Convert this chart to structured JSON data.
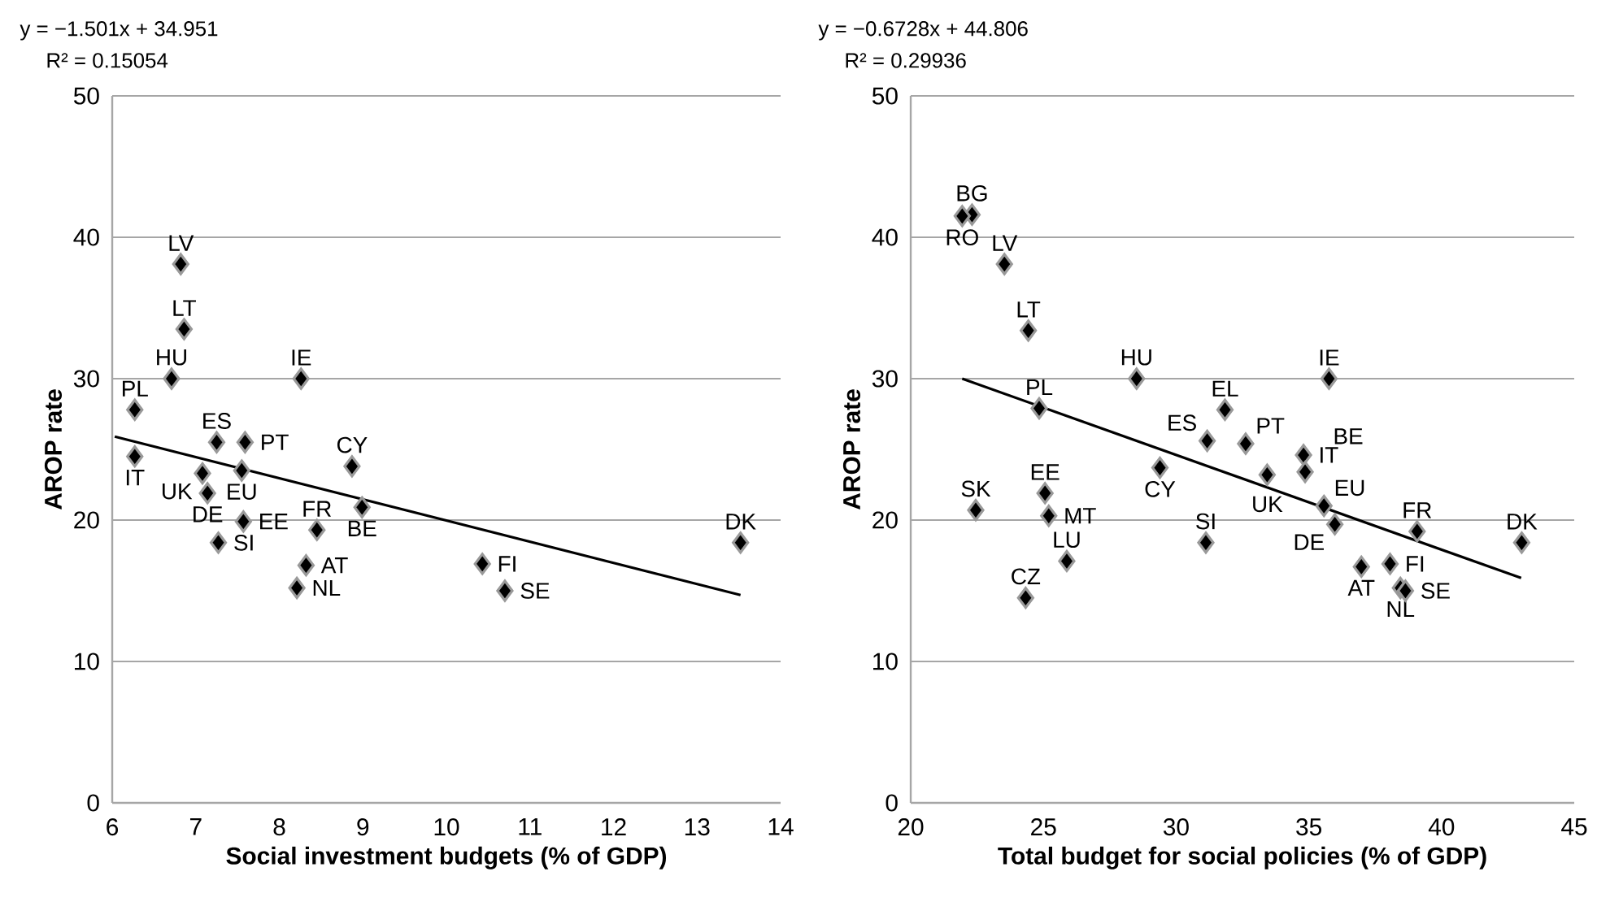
{
  "chart_data": [
    {
      "type": "scatter",
      "xlabel": "Social investment budgets (% of GDP)",
      "ylabel": "AROP rate",
      "xlim": [
        6,
        14
      ],
      "ylim": [
        0,
        50
      ],
      "xticks": [
        6,
        7,
        8,
        9,
        10,
        11,
        12,
        13,
        14
      ],
      "yticks": [
        0,
        10,
        20,
        30,
        40,
        50
      ],
      "grid": "y",
      "marker": "diamond",
      "series": [
        {
          "color": "#000000",
          "x": [
            6.82,
            6.86,
            6.71,
            8.26,
            6.27,
            7.25,
            7.59,
            6.27,
            7.55,
            8.87,
            7.08,
            7.14,
            8.99,
            7.57,
            8.45,
            7.27,
            8.32,
            8.21,
            10.43,
            10.7,
            13.52
          ],
          "values": [
            38.1,
            33.5,
            30.0,
            30.0,
            27.8,
            25.5,
            25.5,
            24.5,
            23.5,
            23.8,
            23.3,
            21.9,
            20.9,
            19.9,
            19.3,
            18.4,
            16.8,
            15.2,
            16.9,
            15.0,
            18.4
          ]
        },
        {
          "type": "line",
          "color": "#000000",
          "line_style": "solid",
          "marker": "none",
          "x": [
            6.03,
            13.52
          ],
          "values": [
            25.9,
            14.7
          ]
        }
      ],
      "annotations": [
        "y = −1.501x + 34.951",
        "R² = 0.15054",
        {
          "text": "LV",
          "x": 6.82,
          "y": 38.1
        },
        {
          "text": "LT",
          "x": 6.86,
          "y": 33.5
        },
        {
          "text": "HU",
          "x": 6.71,
          "y": 30.0
        },
        {
          "text": "IE",
          "x": 8.26,
          "y": 30.0
        },
        {
          "text": "PL",
          "x": 6.27,
          "y": 27.8
        },
        {
          "text": "ES",
          "x": 7.25,
          "y": 25.5
        },
        {
          "text": "PT",
          "x": 7.59,
          "y": 25.5
        },
        {
          "text": "IT",
          "x": 6.27,
          "y": 24.5
        },
        {
          "text": "EU",
          "x": 7.55,
          "y": 23.5
        },
        {
          "text": "CY",
          "x": 8.87,
          "y": 23.8
        },
        {
          "text": "UK",
          "x": 7.08,
          "y": 23.3
        },
        {
          "text": "DE",
          "x": 7.14,
          "y": 21.9
        },
        {
          "text": "BE",
          "x": 8.99,
          "y": 20.9
        },
        {
          "text": "EE",
          "x": 7.57,
          "y": 19.9
        },
        {
          "text": "FR",
          "x": 8.45,
          "y": 19.3
        },
        {
          "text": "SI",
          "x": 7.27,
          "y": 18.4
        },
        {
          "text": "AT",
          "x": 8.32,
          "y": 16.8
        },
        {
          "text": "NL",
          "x": 8.21,
          "y": 15.2
        },
        {
          "text": "FI",
          "x": 10.43,
          "y": 16.9
        },
        {
          "text": "SE",
          "x": 10.7,
          "y": 15.0
        },
        {
          "text": "DK",
          "x": 13.52,
          "y": 18.4
        }
      ]
    },
    {
      "type": "scatter",
      "xlabel": "Total budget for social policies (% of GDP)",
      "ylabel": "AROP rate",
      "xlim": [
        20,
        45
      ],
      "ylim": [
        0,
        50
      ],
      "xticks": [
        20,
        25,
        30,
        35,
        40,
        45
      ],
      "yticks": [
        0,
        10,
        20,
        30,
        40,
        50
      ],
      "grid": "y",
      "marker": "diamond",
      "series": [
        {
          "color": "#000000",
          "x": [
            22.31,
            21.94,
            23.53,
            24.43,
            28.51,
            35.76,
            24.84,
            31.84,
            31.17,
            32.62,
            29.39,
            33.43,
            22.45,
            25.06,
            25.2,
            31.12,
            25.88,
            24.33,
            34.8,
            34.86,
            35.57,
            35.98,
            39.08,
            43.02,
            36.98,
            38.06,
            38.45,
            38.64
          ],
          "values": [
            41.6,
            41.5,
            38.1,
            33.4,
            30.0,
            30.0,
            27.9,
            27.8,
            25.6,
            25.4,
            23.7,
            23.2,
            20.7,
            21.9,
            20.3,
            18.4,
            17.1,
            14.5,
            24.6,
            23.4,
            21.0,
            19.7,
            19.2,
            18.4,
            16.7,
            16.9,
            15.2,
            15.0
          ]
        },
        {
          "type": "line",
          "color": "#000000",
          "line_style": "solid",
          "marker": "none",
          "x": [
            21.94,
            43.0
          ],
          "values": [
            30.0,
            15.9
          ]
        }
      ],
      "annotations": [
        "y = −0.6728x + 44.806",
        "R² = 0.29936",
        {
          "text": "BG",
          "x": 22.31,
          "y": 41.6
        },
        {
          "text": "RO",
          "x": 21.94,
          "y": 41.5
        },
        {
          "text": "LV",
          "x": 23.53,
          "y": 38.1
        },
        {
          "text": "LT",
          "x": 24.43,
          "y": 33.4
        },
        {
          "text": "HU",
          "x": 28.51,
          "y": 30.0
        },
        {
          "text": "IE",
          "x": 35.76,
          "y": 30.0
        },
        {
          "text": "PL",
          "x": 24.84,
          "y": 27.9
        },
        {
          "text": "EL",
          "x": 31.84,
          "y": 27.8
        },
        {
          "text": "ES",
          "x": 31.17,
          "y": 25.6
        },
        {
          "text": "PT",
          "x": 32.62,
          "y": 25.4
        },
        {
          "text": "CY",
          "x": 29.39,
          "y": 23.7
        },
        {
          "text": "UK",
          "x": 33.43,
          "y": 23.2
        },
        {
          "text": "SK",
          "x": 22.45,
          "y": 20.7
        },
        {
          "text": "EE",
          "x": 25.06,
          "y": 21.9
        },
        {
          "text": "MT",
          "x": 25.2,
          "y": 20.3
        },
        {
          "text": "SI",
          "x": 31.12,
          "y": 18.4
        },
        {
          "text": "LU",
          "x": 25.88,
          "y": 17.1
        },
        {
          "text": "CZ",
          "x": 24.33,
          "y": 14.5
        },
        {
          "text": "IT",
          "x": 34.8,
          "y": 24.6
        },
        {
          "text": "BE",
          "x": 34.86,
          "y": 23.4
        },
        {
          "text": "EU",
          "x": 35.57,
          "y": 21.0
        },
        {
          "text": "DE",
          "x": 35.98,
          "y": 19.7
        },
        {
          "text": "FR",
          "x": 39.08,
          "y": 19.2
        },
        {
          "text": "DK",
          "x": 43.02,
          "y": 18.4
        },
        {
          "text": "AT",
          "x": 36.98,
          "y": 16.7
        },
        {
          "text": "FI",
          "x": 38.06,
          "y": 16.9
        },
        {
          "text": "NL",
          "x": 38.45,
          "y": 15.2
        },
        {
          "text": "SE",
          "x": 38.64,
          "y": 15.0
        }
      ]
    }
  ]
}
